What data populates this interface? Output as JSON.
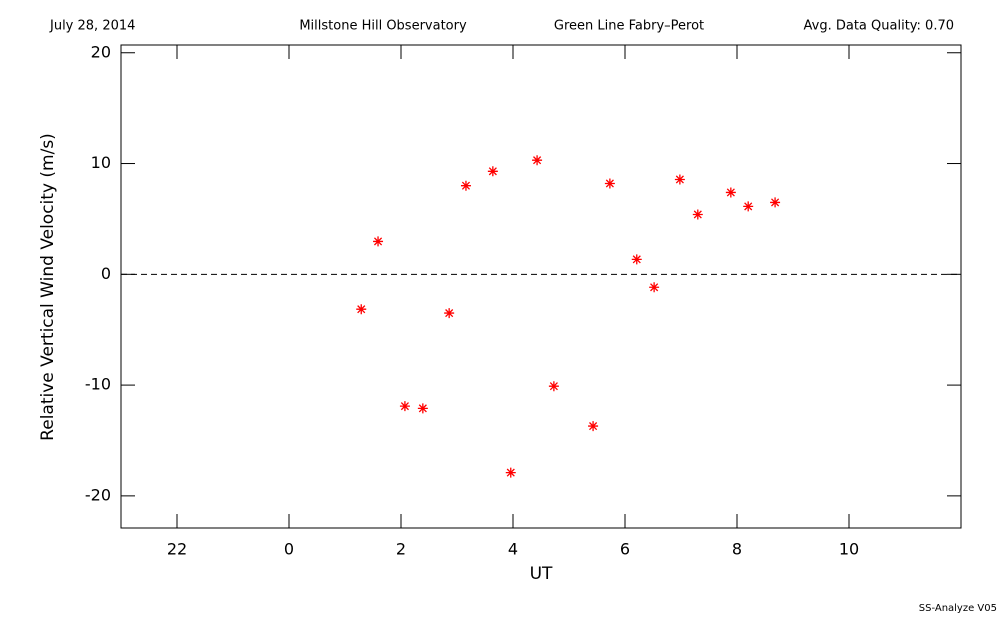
{
  "chart_data": {
    "type": "scatter",
    "header": [
      "July 28, 2014",
      "Millstone Hill Observatory",
      "Green Line Fabry–Perot",
      "Avg. Data Quality: 0.70"
    ],
    "footer": "SS-Analyze V05",
    "xlabel": "UT",
    "ylabel": "Relative Vertical Wind Velocity (m/s)",
    "x": [
      1.29,
      1.59,
      2.07,
      2.39,
      2.86,
      3.16,
      3.64,
      3.96,
      4.43,
      4.73,
      5.43,
      5.73,
      6.21,
      6.52,
      6.98,
      7.3,
      7.89,
      8.2,
      8.68
    ],
    "values": [
      -3.15,
      2.97,
      -11.9,
      -12.1,
      -3.5,
      8.0,
      9.3,
      -17.9,
      10.3,
      -10.1,
      -13.7,
      8.2,
      1.35,
      -1.17,
      8.56,
      5.4,
      7.39,
      6.13,
      6.49
    ],
    "color": "#ff0000",
    "xlim": [
      -3,
      12
    ],
    "xticks": [
      {
        "value": -2,
        "label": "22"
      },
      0,
      2,
      4,
      6,
      8,
      10
    ],
    "ylim": [
      -22.9,
      20.7
    ],
    "yticks": [
      -20,
      -10,
      0,
      10,
      20
    ],
    "hline": 0
  }
}
